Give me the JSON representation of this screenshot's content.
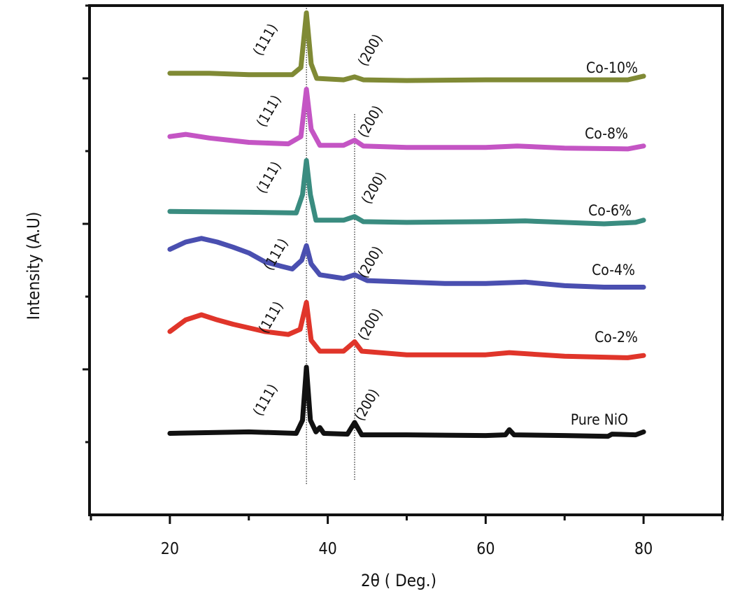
{
  "chart_data": {
    "type": "line",
    "title": "",
    "xlabel": "2θ ( Deg.)",
    "ylabel": "Intensity (A.U)",
    "xlim": [
      10,
      90
    ],
    "ylim": [
      0,
      7
    ],
    "xticks": [
      20,
      40,
      60,
      80
    ],
    "xtick_labels": [
      "20",
      "40",
      "60",
      "80"
    ],
    "xminor_ticks": [
      10,
      30,
      50,
      70,
      90
    ],
    "yticks_unlabeled": [
      1,
      2,
      3,
      4,
      5,
      6,
      7
    ],
    "grid": false,
    "legend": "inline labels at right end of each curve",
    "reference_lines": [
      {
        "x": 37.3,
        "style": "dotted",
        "peak": "(111)"
      },
      {
        "x": 43.4,
        "style": "dotted",
        "peak": "(200)"
      }
    ],
    "peak_labels": [
      "(111)",
      "(200)"
    ],
    "series": [
      {
        "name": "Pure NiO",
        "color": "#111111",
        "points": [
          [
            20,
            1.12
          ],
          [
            30,
            1.14
          ],
          [
            36,
            1.12
          ],
          [
            36.8,
            1.3
          ],
          [
            37.3,
            2.03
          ],
          [
            37.8,
            1.3
          ],
          [
            38.5,
            1.14
          ],
          [
            39,
            1.2
          ],
          [
            39.5,
            1.12
          ],
          [
            42.5,
            1.11
          ],
          [
            43.4,
            1.27
          ],
          [
            44.3,
            1.1
          ],
          [
            50,
            1.1
          ],
          [
            60,
            1.09
          ],
          [
            62.5,
            1.1
          ],
          [
            63,
            1.17
          ],
          [
            63.6,
            1.1
          ],
          [
            70,
            1.09
          ],
          [
            75.5,
            1.08
          ],
          [
            76,
            1.11
          ],
          [
            79,
            1.1
          ],
          [
            80,
            1.14
          ]
        ]
      },
      {
        "name": "Co-2%",
        "color": "#e0352a",
        "points": [
          [
            20,
            2.52
          ],
          [
            22,
            2.68
          ],
          [
            24,
            2.75
          ],
          [
            26,
            2.68
          ],
          [
            28,
            2.62
          ],
          [
            32,
            2.52
          ],
          [
            35,
            2.48
          ],
          [
            36.5,
            2.55
          ],
          [
            37.3,
            2.92
          ],
          [
            37.9,
            2.4
          ],
          [
            39,
            2.25
          ],
          [
            42,
            2.25
          ],
          [
            43.4,
            2.38
          ],
          [
            44.3,
            2.25
          ],
          [
            50,
            2.2
          ],
          [
            60,
            2.2
          ],
          [
            63,
            2.23
          ],
          [
            70,
            2.18
          ],
          [
            78,
            2.16
          ],
          [
            80,
            2.19
          ]
        ]
      },
      {
        "name": "Co-4%",
        "color": "#4a4fb0",
        "points": [
          [
            20,
            3.65
          ],
          [
            22,
            3.75
          ],
          [
            24,
            3.8
          ],
          [
            26,
            3.75
          ],
          [
            28,
            3.68
          ],
          [
            30,
            3.6
          ],
          [
            32,
            3.48
          ],
          [
            34,
            3.42
          ],
          [
            35.5,
            3.38
          ],
          [
            36.7,
            3.5
          ],
          [
            37.3,
            3.7
          ],
          [
            37.9,
            3.45
          ],
          [
            39,
            3.3
          ],
          [
            42,
            3.25
          ],
          [
            43.4,
            3.3
          ],
          [
            45,
            3.22
          ],
          [
            50,
            3.2
          ],
          [
            55,
            3.18
          ],
          [
            60,
            3.18
          ],
          [
            65,
            3.2
          ],
          [
            70,
            3.15
          ],
          [
            75,
            3.13
          ],
          [
            80,
            3.13
          ]
        ]
      },
      {
        "name": "Co-6%",
        "color": "#3a8c80",
        "points": [
          [
            20,
            4.17
          ],
          [
            30,
            4.16
          ],
          [
            36,
            4.15
          ],
          [
            36.8,
            4.4
          ],
          [
            37.3,
            4.87
          ],
          [
            37.8,
            4.4
          ],
          [
            38.5,
            4.05
          ],
          [
            42,
            4.05
          ],
          [
            43.4,
            4.1
          ],
          [
            44.5,
            4.03
          ],
          [
            50,
            4.02
          ],
          [
            60,
            4.03
          ],
          [
            65,
            4.04
          ],
          [
            75,
            4.0
          ],
          [
            79,
            4.02
          ],
          [
            80,
            4.05
          ]
        ]
      },
      {
        "name": "Co-8%",
        "color": "#c455c4",
        "points": [
          [
            20,
            5.2
          ],
          [
            22,
            5.23
          ],
          [
            25,
            5.18
          ],
          [
            30,
            5.12
          ],
          [
            35,
            5.1
          ],
          [
            36.6,
            5.2
          ],
          [
            37.3,
            5.85
          ],
          [
            37.9,
            5.3
          ],
          [
            39,
            5.08
          ],
          [
            42,
            5.08
          ],
          [
            43.4,
            5.15
          ],
          [
            44.5,
            5.07
          ],
          [
            50,
            5.05
          ],
          [
            60,
            5.05
          ],
          [
            64,
            5.07
          ],
          [
            70,
            5.04
          ],
          [
            78,
            5.03
          ],
          [
            80,
            5.07
          ]
        ]
      },
      {
        "name": "Co-10%",
        "color": "#808a35",
        "points": [
          [
            20,
            6.07
          ],
          [
            25,
            6.07
          ],
          [
            30,
            6.05
          ],
          [
            35.5,
            6.05
          ],
          [
            36.6,
            6.15
          ],
          [
            37.3,
            6.9
          ],
          [
            37.9,
            6.2
          ],
          [
            38.6,
            6.0
          ],
          [
            42,
            5.98
          ],
          [
            43.4,
            6.02
          ],
          [
            44.5,
            5.98
          ],
          [
            50,
            5.97
          ],
          [
            60,
            5.98
          ],
          [
            70,
            5.98
          ],
          [
            78,
            5.98
          ],
          [
            80,
            6.03
          ]
        ]
      }
    ]
  }
}
